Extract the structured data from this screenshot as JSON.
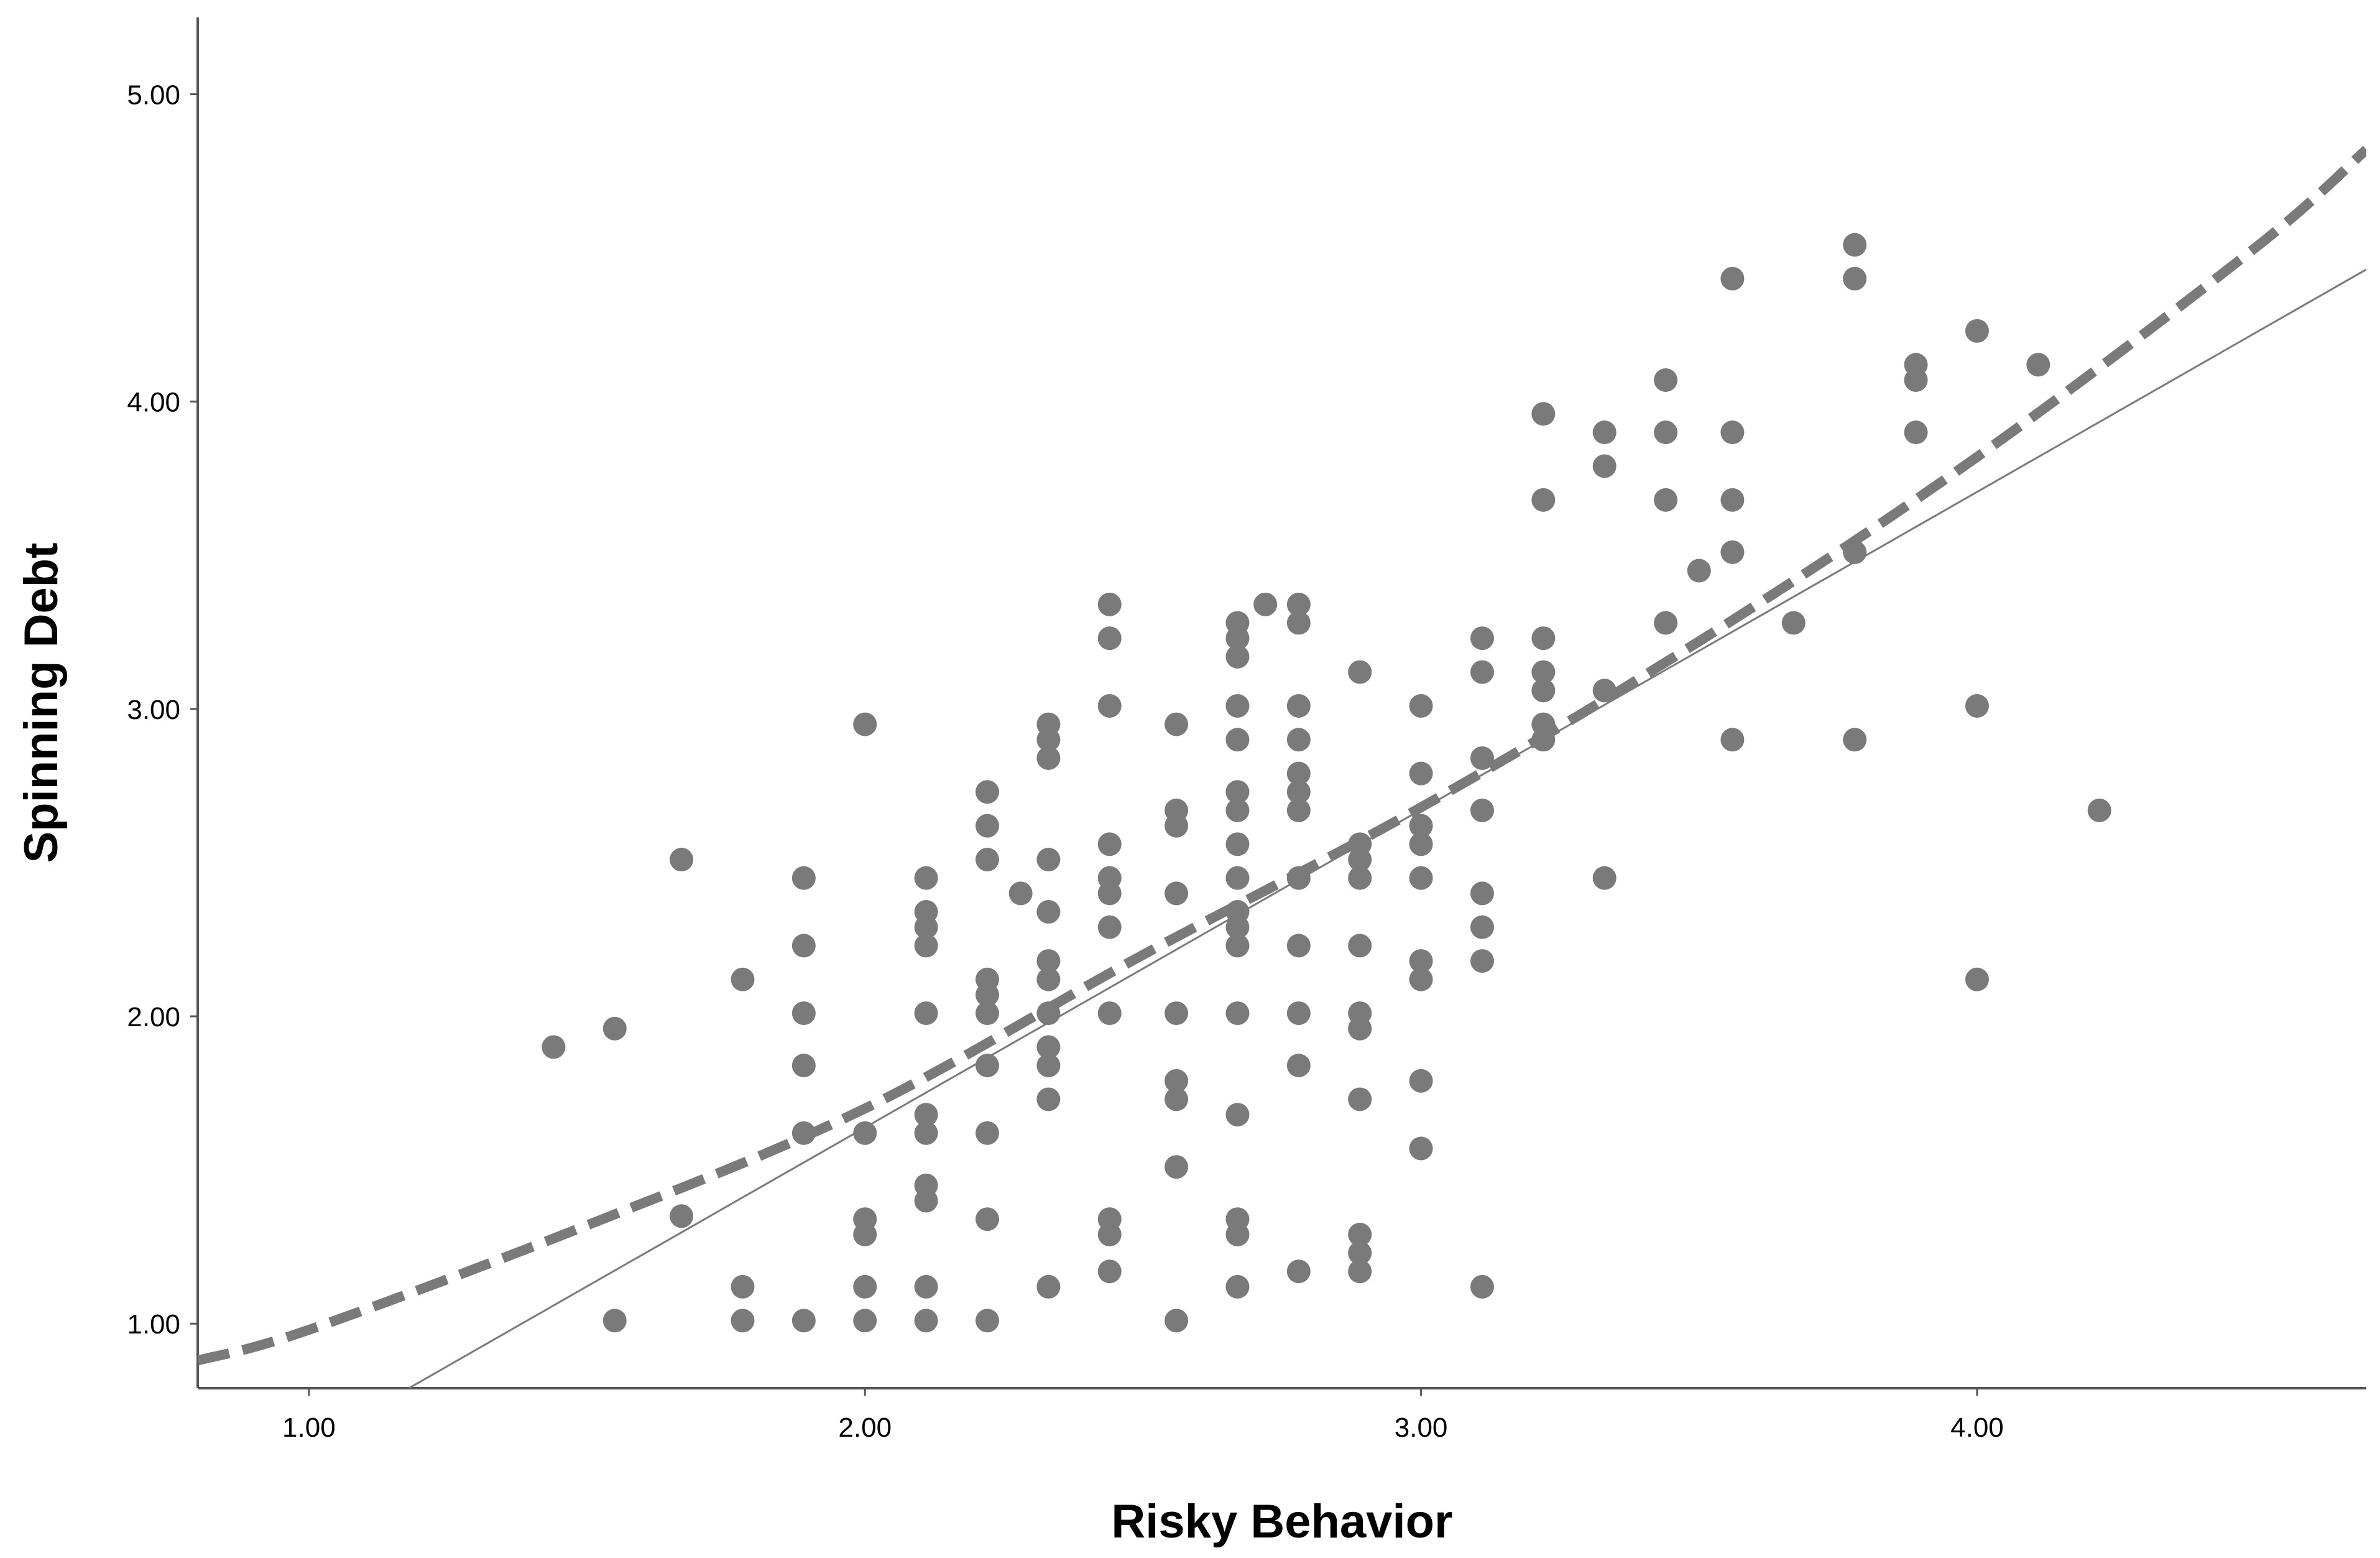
{
  "chart_data": {
    "type": "scatter",
    "title": "",
    "xlabel": "Risky Behavior",
    "ylabel": "Spinning Debt",
    "xlim": [
      0.8,
      4.7
    ],
    "ylim": [
      0.79,
      5.25
    ],
    "x_ticks": [
      {
        "value": 1,
        "label": "1.00"
      },
      {
        "value": 2,
        "label": "2.00"
      },
      {
        "value": 3,
        "label": "3.00"
      },
      {
        "value": 4,
        "label": "4.00"
      }
    ],
    "y_ticks": [
      {
        "value": 1,
        "label": "1.00"
      },
      {
        "value": 2,
        "label": "2.00"
      },
      {
        "value": 3,
        "label": "3.00"
      },
      {
        "value": 4,
        "label": "4.00"
      },
      {
        "value": 5,
        "label": "5.00"
      }
    ],
    "grid": false,
    "legend": "none",
    "point_color": "#7a7a7a",
    "line_color": "#7a7a7a",
    "fit_lines": [
      {
        "kind": "linear",
        "style": "solid",
        "x": [
          1.17,
          4.7
        ],
        "y": [
          0.78,
          4.43
        ]
      },
      {
        "kind": "quadratic",
        "style": "dashed",
        "x": [
          0.8,
          1.0,
          1.5,
          2.0,
          2.5,
          3.0,
          3.5,
          4.0,
          4.5,
          4.7
        ],
        "y": [
          0.88,
          0.98,
          1.32,
          1.7,
          2.2,
          2.68,
          3.22,
          3.82,
          4.5,
          4.82
        ]
      }
    ],
    "points": [
      [
        1.44,
        1.9
      ],
      [
        1.55,
        1.96
      ],
      [
        1.55,
        1.01
      ],
      [
        1.67,
        2.51
      ],
      [
        1.67,
        1.35
      ],
      [
        1.78,
        2.12
      ],
      [
        1.78,
        1.12
      ],
      [
        1.78,
        1.01
      ],
      [
        1.89,
        2.45
      ],
      [
        1.89,
        2.23
      ],
      [
        1.89,
        2.01
      ],
      [
        1.89,
        1.84
      ],
      [
        1.89,
        1.62
      ],
      [
        1.89,
        1.01
      ],
      [
        2.0,
        2.95
      ],
      [
        2.0,
        1.62
      ],
      [
        2.0,
        1.34
      ],
      [
        2.0,
        1.29
      ],
      [
        2.0,
        1.12
      ],
      [
        2.0,
        1.01
      ],
      [
        2.11,
        2.45
      ],
      [
        2.11,
        2.34
      ],
      [
        2.11,
        2.29
      ],
      [
        2.11,
        2.23
      ],
      [
        2.11,
        2.01
      ],
      [
        2.11,
        1.68
      ],
      [
        2.11,
        1.62
      ],
      [
        2.11,
        1.45
      ],
      [
        2.11,
        1.4
      ],
      [
        2.11,
        1.12
      ],
      [
        2.11,
        1.01
      ],
      [
        2.22,
        2.73
      ],
      [
        2.22,
        2.62
      ],
      [
        2.22,
        2.51
      ],
      [
        2.22,
        2.12
      ],
      [
        2.22,
        2.07
      ],
      [
        2.22,
        2.01
      ],
      [
        2.22,
        1.84
      ],
      [
        2.22,
        1.62
      ],
      [
        2.22,
        1.34
      ],
      [
        2.22,
        1.01
      ],
      [
        2.28,
        2.4
      ],
      [
        2.33,
        2.95
      ],
      [
        2.33,
        2.9
      ],
      [
        2.33,
        2.84
      ],
      [
        2.33,
        2.51
      ],
      [
        2.33,
        2.34
      ],
      [
        2.33,
        2.18
      ],
      [
        2.33,
        2.12
      ],
      [
        2.33,
        2.01
      ],
      [
        2.33,
        1.9
      ],
      [
        2.33,
        1.84
      ],
      [
        2.33,
        1.73
      ],
      [
        2.33,
        1.12
      ],
      [
        2.44,
        3.34
      ],
      [
        2.44,
        3.23
      ],
      [
        2.44,
        3.01
      ],
      [
        2.44,
        2.56
      ],
      [
        2.44,
        2.45
      ],
      [
        2.44,
        2.4
      ],
      [
        2.44,
        2.29
      ],
      [
        2.44,
        2.01
      ],
      [
        2.44,
        1.34
      ],
      [
        2.44,
        1.29
      ],
      [
        2.44,
        1.17
      ],
      [
        2.56,
        2.95
      ],
      [
        2.56,
        2.67
      ],
      [
        2.56,
        2.62
      ],
      [
        2.56,
        2.4
      ],
      [
        2.56,
        2.01
      ],
      [
        2.56,
        1.79
      ],
      [
        2.56,
        1.73
      ],
      [
        2.56,
        1.51
      ],
      [
        2.56,
        1.01
      ],
      [
        2.67,
        3.28
      ],
      [
        2.67,
        3.23
      ],
      [
        2.67,
        3.17
      ],
      [
        2.67,
        3.01
      ],
      [
        2.67,
        2.9
      ],
      [
        2.67,
        2.73
      ],
      [
        2.67,
        2.67
      ],
      [
        2.67,
        2.56
      ],
      [
        2.67,
        2.45
      ],
      [
        2.67,
        2.34
      ],
      [
        2.67,
        2.29
      ],
      [
        2.67,
        2.23
      ],
      [
        2.67,
        2.01
      ],
      [
        2.67,
        1.68
      ],
      [
        2.67,
        1.34
      ],
      [
        2.67,
        1.29
      ],
      [
        2.67,
        1.12
      ],
      [
        2.72,
        3.34
      ],
      [
        2.78,
        3.34
      ],
      [
        2.78,
        3.28
      ],
      [
        2.78,
        3.01
      ],
      [
        2.78,
        2.9
      ],
      [
        2.78,
        2.79
      ],
      [
        2.78,
        2.73
      ],
      [
        2.78,
        2.67
      ],
      [
        2.78,
        2.45
      ],
      [
        2.78,
        2.23
      ],
      [
        2.78,
        2.01
      ],
      [
        2.78,
        1.84
      ],
      [
        2.78,
        1.17
      ],
      [
        2.89,
        3.12
      ],
      [
        2.89,
        2.56
      ],
      [
        2.89,
        2.51
      ],
      [
        2.89,
        2.45
      ],
      [
        2.89,
        2.23
      ],
      [
        2.89,
        2.01
      ],
      [
        2.89,
        1.96
      ],
      [
        2.89,
        1.73
      ],
      [
        2.89,
        1.29
      ],
      [
        2.89,
        1.23
      ],
      [
        2.89,
        1.17
      ],
      [
        3.0,
        3.01
      ],
      [
        3.0,
        2.79
      ],
      [
        3.0,
        2.62
      ],
      [
        3.0,
        2.56
      ],
      [
        3.0,
        2.45
      ],
      [
        3.0,
        2.18
      ],
      [
        3.0,
        2.12
      ],
      [
        3.0,
        1.79
      ],
      [
        3.0,
        1.57
      ],
      [
        3.11,
        3.23
      ],
      [
        3.11,
        3.12
      ],
      [
        3.11,
        2.84
      ],
      [
        3.11,
        2.67
      ],
      [
        3.11,
        2.4
      ],
      [
        3.11,
        2.29
      ],
      [
        3.11,
        2.18
      ],
      [
        3.11,
        1.12
      ],
      [
        3.22,
        3.96
      ],
      [
        3.22,
        3.68
      ],
      [
        3.22,
        3.23
      ],
      [
        3.22,
        3.12
      ],
      [
        3.22,
        3.06
      ],
      [
        3.22,
        2.95
      ],
      [
        3.22,
        2.9
      ],
      [
        3.33,
        3.9
      ],
      [
        3.33,
        3.79
      ],
      [
        3.33,
        3.06
      ],
      [
        3.33,
        2.45
      ],
      [
        3.44,
        4.07
      ],
      [
        3.44,
        3.9
      ],
      [
        3.44,
        3.68
      ],
      [
        3.44,
        3.28
      ],
      [
        3.5,
        3.45
      ],
      [
        3.56,
        4.4
      ],
      [
        3.56,
        3.9
      ],
      [
        3.56,
        3.68
      ],
      [
        3.56,
        3.51
      ],
      [
        3.56,
        2.9
      ],
      [
        3.67,
        3.28
      ],
      [
        3.78,
        4.51
      ],
      [
        3.78,
        4.4
      ],
      [
        3.78,
        3.51
      ],
      [
        3.78,
        2.9
      ],
      [
        3.89,
        4.12
      ],
      [
        3.89,
        4.07
      ],
      [
        3.89,
        3.9
      ],
      [
        4.0,
        4.23
      ],
      [
        4.0,
        3.01
      ],
      [
        4.0,
        2.12
      ],
      [
        4.11,
        4.12
      ],
      [
        4.22,
        2.67
      ]
    ]
  }
}
